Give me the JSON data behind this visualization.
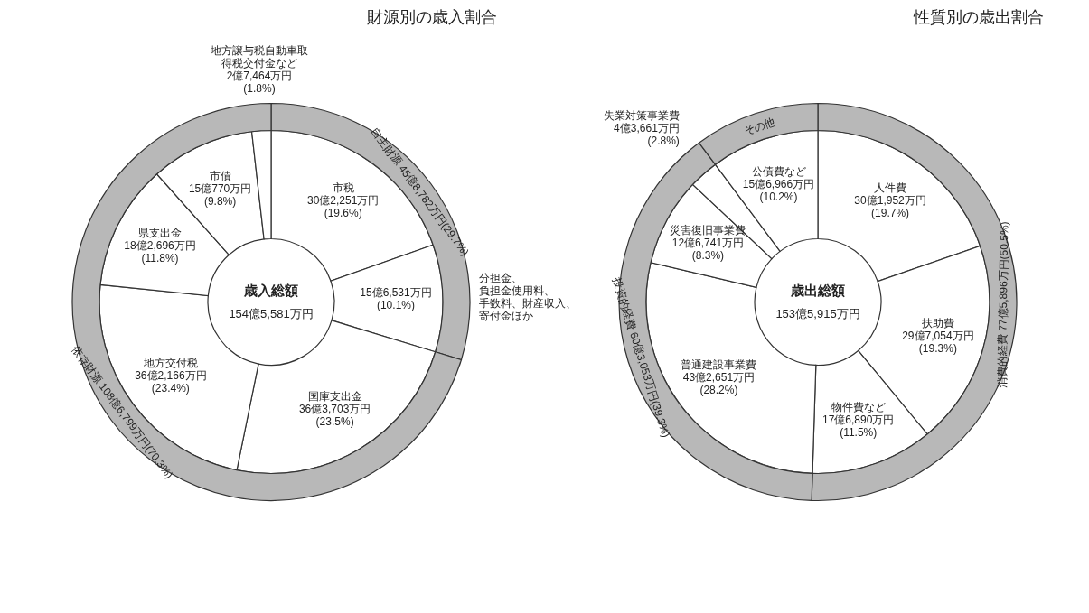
{
  "chart_data": [
    {
      "type": "donut",
      "title": "財源別の歳入割合",
      "annotations": [
        "歳入総額",
        "154億5,581万円"
      ],
      "categories": [
        "市税",
        "分担金、負担金使用料、手数料、財産収入、寄付金ほか",
        "国庫支出金",
        "地方交付税",
        "県支出金",
        "市債",
        "地方譲与税自動車取得税交付金など"
      ],
      "values": [
        19.6,
        10.1,
        23.5,
        23.4,
        11.8,
        9.8,
        1.8
      ],
      "value_labels": [
        "30億2,251万円\n(19.6%)",
        "15億6,531万円\n(10.1%)",
        "36億3,703万円\n(23.5%)",
        "36億2,166万円\n(23.4%)",
        "18億2,696万円\n(11.8%)",
        "15億770万円\n(9.8%)",
        "2億7,464万円\n(1.8%)"
      ],
      "colors": [
        "#ffffff",
        "#ffffff",
        "#ffffff",
        "#ffffff",
        "#ffffff",
        "#ffffff",
        "#ffffff"
      ]
    },
    {
      "type": "donut",
      "categories": [
        "自主財源",
        "依存財源"
      ],
      "values": [
        29.7,
        70.3
      ],
      "value_labels": [
        "45億8,782万円(29.7%)",
        "108億6,799万円(70.3%)"
      ],
      "colors": [
        "#b8b8b8",
        "#b8b8b8"
      ]
    },
    {
      "type": "donut",
      "title": "性質別の歳出割合",
      "annotations": [
        "歳出総額",
        "153億5,915万円"
      ],
      "categories": [
        "人件費",
        "扶助費",
        "物件費など",
        "普通建設事業費",
        "災害復旧事業費",
        "失業対策事業費",
        "公債費など"
      ],
      "values": [
        19.7,
        19.3,
        11.5,
        28.2,
        8.3,
        2.8,
        10.2
      ],
      "value_labels": [
        "30億1,952万円\n(19.7%)",
        "29億7,054万円\n(19.3%)",
        "17億6,890万円\n(11.5%)",
        "43億2,651万円\n(28.2%)",
        "12億6,741万円\n(8.3%)",
        "4億3,661万円\n(2.8%)",
        "15億6,966万円\n(10.2%)"
      ],
      "colors": [
        "#ffffff",
        "#ffffff",
        "#ffffff",
        "#ffffff",
        "#ffffff",
        "#ffffff",
        "#ffffff"
      ]
    },
    {
      "type": "donut",
      "categories": [
        "消費的経費",
        "投資的経費",
        "その他"
      ],
      "values": [
        50.5,
        39.3,
        10.2
      ],
      "value_labels": [
        "77億5,896万円(50.5%)",
        "60億3,053万円(39.3%)",
        null
      ],
      "colors": [
        "#b8b8b8",
        "#b8b8b8",
        "#b8b8b8"
      ]
    }
  ]
}
